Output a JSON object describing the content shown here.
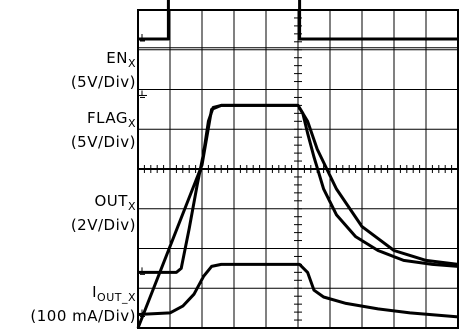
{
  "chart_data": {
    "type": "line",
    "title": "",
    "grid": true,
    "x_divisions": 10,
    "y_divisions": 8,
    "x_range_div": [
      0,
      10
    ],
    "y_range_div": [
      0,
      8
    ],
    "channels": [
      {
        "id": "en",
        "name_main": "EN",
        "name_sub": "X",
        "scale": "(5V/Div)",
        "ground_div": 7.27,
        "points": [
          [
            0,
            7.27
          ],
          [
            0.95,
            7.27
          ],
          [
            0.95,
            8.67
          ],
          [
            5.05,
            8.67
          ],
          [
            5.05,
            7.27
          ],
          [
            10,
            7.27
          ]
        ]
      },
      {
        "id": "flag",
        "name_main": "FLAG",
        "name_sub": "X",
        "scale": "(5V/Div)",
        "ground_div": 5.85,
        "points": [
          [
            0,
            0.0
          ],
          [
            2.0,
            4.1
          ],
          [
            2.3,
            5.5
          ],
          [
            2.6,
            5.6
          ],
          [
            5.0,
            5.6
          ],
          [
            5.3,
            5.2
          ],
          [
            5.6,
            4.5
          ],
          [
            6.2,
            3.5
          ],
          [
            7.0,
            2.55
          ],
          [
            8.0,
            1.95
          ],
          [
            9.0,
            1.7
          ],
          [
            10,
            1.6
          ]
        ]
      },
      {
        "id": "out",
        "name_main": "OUT",
        "name_sub": "X",
        "scale": "(2V/Div)",
        "ground_div": 1.4,
        "points": [
          [
            0,
            1.4
          ],
          [
            1.2,
            1.4
          ],
          [
            1.35,
            1.5
          ],
          [
            1.6,
            2.5
          ],
          [
            1.85,
            3.6
          ],
          [
            2.05,
            4.4
          ],
          [
            2.2,
            5.2
          ],
          [
            2.35,
            5.55
          ],
          [
            2.6,
            5.6
          ],
          [
            5.0,
            5.6
          ],
          [
            5.15,
            5.4
          ],
          [
            5.3,
            4.9
          ],
          [
            5.5,
            4.3
          ],
          [
            5.8,
            3.5
          ],
          [
            6.2,
            2.85
          ],
          [
            6.8,
            2.3
          ],
          [
            7.5,
            1.95
          ],
          [
            8.3,
            1.7
          ],
          [
            9.2,
            1.6
          ],
          [
            10,
            1.55
          ]
        ]
      },
      {
        "id": "iout",
        "name_main": "I",
        "name_sub": "OUT_X",
        "scale": "(100 mA/Div)",
        "ground_div": 0.34,
        "points": [
          [
            0,
            0.34
          ],
          [
            1.0,
            0.38
          ],
          [
            1.4,
            0.55
          ],
          [
            1.75,
            0.85
          ],
          [
            2.05,
            1.3
          ],
          [
            2.3,
            1.55
          ],
          [
            2.6,
            1.6
          ],
          [
            5.05,
            1.6
          ],
          [
            5.3,
            1.4
          ],
          [
            5.5,
            0.95
          ],
          [
            5.8,
            0.78
          ],
          [
            6.5,
            0.62
          ],
          [
            7.5,
            0.48
          ],
          [
            8.5,
            0.38
          ],
          [
            10,
            0.28
          ]
        ]
      }
    ]
  }
}
